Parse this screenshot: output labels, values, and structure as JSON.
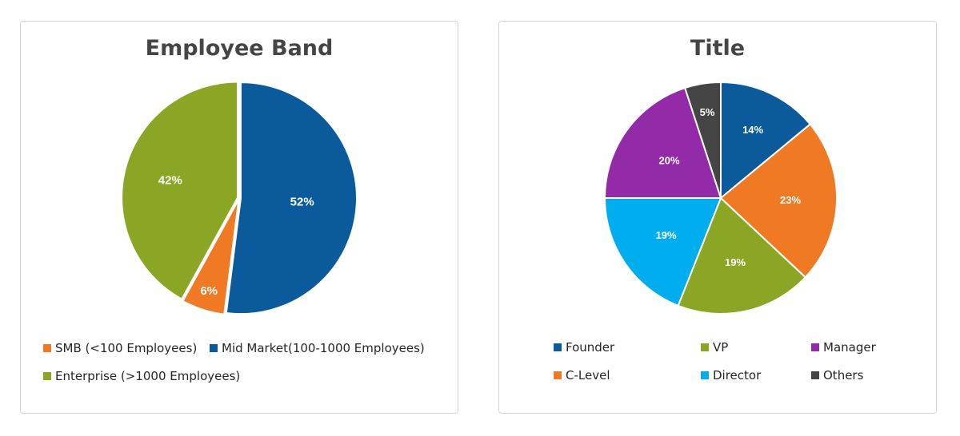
{
  "chart_data": [
    {
      "type": "pie",
      "title": "Employee Band",
      "slices": [
        {
          "name": "Mid Market(100-1000 Employees)",
          "value": 52,
          "label": "52%",
          "color": "#0B5A9C"
        },
        {
          "name": "SMB (<100 Employees)",
          "value": 6,
          "label": "6%",
          "color": "#F07A24"
        },
        {
          "name": "Enterprise (>1000 Employees)",
          "value": 42,
          "label": "42%",
          "color": "#8BA624"
        }
      ],
      "legend_order": [
        "SMB (<100 Employees)",
        "Mid Market(100-1000 Employees)",
        "Enterprise (>1000 Employees)"
      ],
      "legend_position": "bottom"
    },
    {
      "type": "pie",
      "title": "Title",
      "slices": [
        {
          "name": "Founder",
          "value": 14,
          "label": "14%",
          "color": "#0B5A9C"
        },
        {
          "name": "C-Level",
          "value": 23,
          "label": "23%",
          "color": "#F07A24"
        },
        {
          "name": "VP",
          "value": 19,
          "label": "19%",
          "color": "#8BA624"
        },
        {
          "name": "Director",
          "value": 19,
          "label": "19%",
          "color": "#00AEEF"
        },
        {
          "name": "Manager",
          "value": 20,
          "label": "20%",
          "color": "#932BA8"
        },
        {
          "name": "Others",
          "value": 5,
          "label": "5%",
          "color": "#454545"
        }
      ],
      "legend_order": [
        "Founder",
        "VP",
        "Manager",
        "C-Level",
        "Director",
        "Others"
      ],
      "legend_position": "bottom"
    }
  ]
}
